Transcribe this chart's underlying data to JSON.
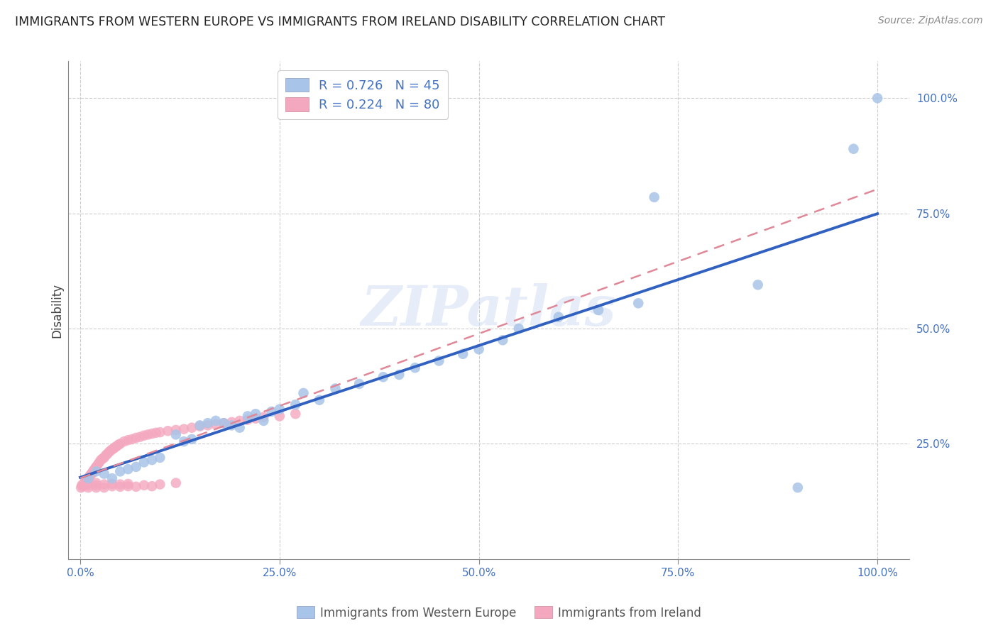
{
  "title": "IMMIGRANTS FROM WESTERN EUROPE VS IMMIGRANTS FROM IRELAND DISABILITY CORRELATION CHART",
  "source": "Source: ZipAtlas.com",
  "ylabel": "Disability",
  "xlabel_label_blue": "Immigrants from Western Europe",
  "xlabel_label_pink": "Immigrants from Ireland",
  "legend_blue_r": "R = 0.726",
  "legend_blue_n": "N = 45",
  "legend_pink_r": "R = 0.224",
  "legend_pink_n": "N = 80",
  "blue_color": "#a8c4e8",
  "pink_color": "#f4a8c0",
  "blue_line_color": "#3060c0",
  "pink_line_color": "#e08898",
  "axis_color": "#4472c4",
  "watermark": "ZIPatlas",
  "xtick_labels": [
    "0.0%",
    "25.0%",
    "50.0%",
    "75.0%",
    "100.0%"
  ],
  "xtick_vals": [
    0.0,
    0.25,
    0.5,
    0.75,
    1.0
  ],
  "ytick_labels": [
    "25.0%",
    "50.0%",
    "75.0%",
    "100.0%"
  ],
  "ytick_vals": [
    0.25,
    0.5,
    0.75,
    1.0
  ],
  "blue_x": [
    0.01,
    0.02,
    0.03,
    0.04,
    0.05,
    0.06,
    0.07,
    0.08,
    0.09,
    0.1,
    0.12,
    0.13,
    0.14,
    0.15,
    0.16,
    0.17,
    0.18,
    0.19,
    0.2,
    0.21,
    0.22,
    0.23,
    0.24,
    0.25,
    0.27,
    0.28,
    0.3,
    0.32,
    0.35,
    0.38,
    0.4,
    0.42,
    0.45,
    0.48,
    0.5,
    0.53,
    0.55,
    0.6,
    0.65,
    0.7,
    0.72,
    0.85,
    0.9,
    0.97,
    1.0
  ],
  "blue_y": [
    0.175,
    0.19,
    0.185,
    0.175,
    0.19,
    0.195,
    0.2,
    0.21,
    0.215,
    0.22,
    0.27,
    0.255,
    0.26,
    0.29,
    0.295,
    0.3,
    0.295,
    0.29,
    0.285,
    0.31,
    0.315,
    0.3,
    0.32,
    0.325,
    0.335,
    0.36,
    0.345,
    0.37,
    0.38,
    0.395,
    0.4,
    0.415,
    0.43,
    0.445,
    0.455,
    0.475,
    0.5,
    0.525,
    0.54,
    0.555,
    0.785,
    0.595,
    0.155,
    0.89,
    1.0
  ],
  "pink_x": [
    0.001,
    0.002,
    0.003,
    0.004,
    0.005,
    0.006,
    0.007,
    0.008,
    0.009,
    0.01,
    0.011,
    0.012,
    0.013,
    0.014,
    0.015,
    0.016,
    0.017,
    0.018,
    0.019,
    0.02,
    0.022,
    0.024,
    0.026,
    0.028,
    0.03,
    0.032,
    0.034,
    0.036,
    0.038,
    0.04,
    0.042,
    0.044,
    0.046,
    0.048,
    0.05,
    0.055,
    0.06,
    0.065,
    0.07,
    0.075,
    0.08,
    0.085,
    0.09,
    0.095,
    0.1,
    0.11,
    0.12,
    0.13,
    0.14,
    0.15,
    0.16,
    0.17,
    0.18,
    0.19,
    0.2,
    0.21,
    0.22,
    0.23,
    0.25,
    0.27,
    0.01,
    0.01,
    0.01,
    0.01,
    0.02,
    0.02,
    0.02,
    0.03,
    0.03,
    0.04,
    0.04,
    0.05,
    0.05,
    0.06,
    0.06,
    0.07,
    0.08,
    0.09,
    0.1,
    0.12
  ],
  "pink_y": [
    0.155,
    0.16,
    0.158,
    0.162,
    0.165,
    0.163,
    0.168,
    0.17,
    0.172,
    0.175,
    0.178,
    0.18,
    0.182,
    0.185,
    0.187,
    0.19,
    0.192,
    0.195,
    0.197,
    0.2,
    0.205,
    0.21,
    0.215,
    0.218,
    0.22,
    0.225,
    0.228,
    0.232,
    0.235,
    0.238,
    0.24,
    0.243,
    0.245,
    0.248,
    0.25,
    0.255,
    0.258,
    0.26,
    0.263,
    0.265,
    0.268,
    0.27,
    0.272,
    0.274,
    0.275,
    0.278,
    0.28,
    0.282,
    0.285,
    0.288,
    0.29,
    0.292,
    0.295,
    0.297,
    0.3,
    0.302,
    0.305,
    0.308,
    0.31,
    0.315,
    0.155,
    0.16,
    0.165,
    0.17,
    0.155,
    0.16,
    0.165,
    0.155,
    0.162,
    0.158,
    0.163,
    0.157,
    0.162,
    0.158,
    0.163,
    0.157,
    0.16,
    0.158,
    0.162,
    0.165
  ]
}
